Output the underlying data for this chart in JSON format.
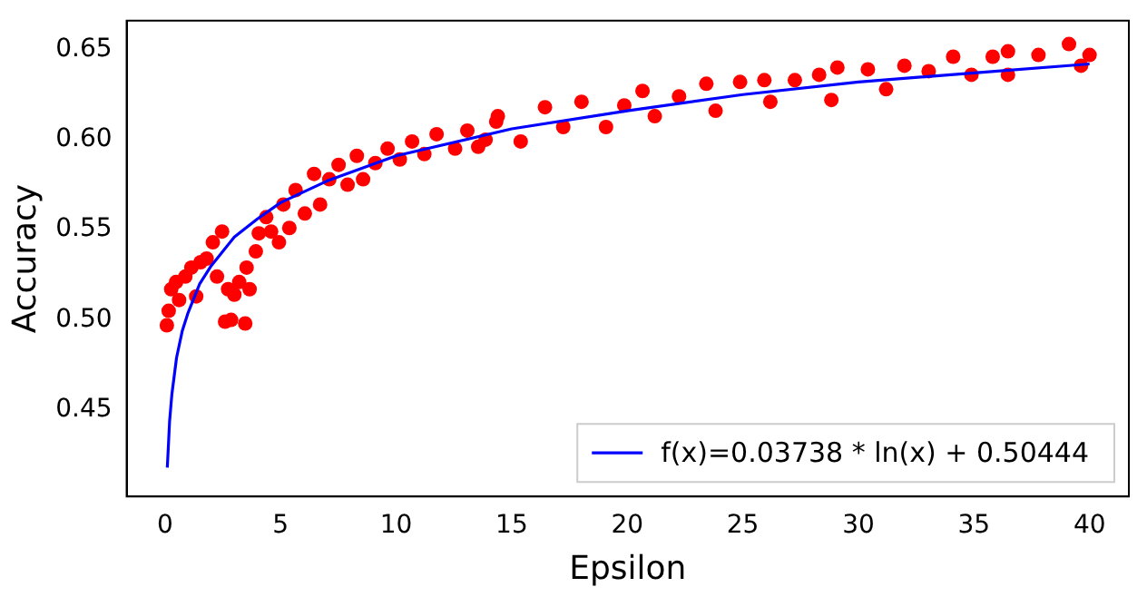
{
  "chart_data": {
    "type": "scatter",
    "xlabel": "Epsilon",
    "ylabel": "Accuracy",
    "xlim": [
      -1.66,
      41.7
    ],
    "xticks": [
      0,
      5,
      10,
      15,
      20,
      25,
      30,
      35,
      40
    ],
    "ylim": [
      0.402,
      0.666
    ],
    "yticks": [
      0.45,
      {
        "value": 0.5,
        "label": "0.50"
      },
      0.55,
      {
        "value": 0.6,
        "label": "0.60"
      },
      0.65
    ],
    "grid": false,
    "legend": "bottom right",
    "marker": "circle",
    "series": [
      {
        "color": "#ff0000",
        "x": [
          0.08,
          0.16,
          0.27,
          0.48,
          0.61,
          0.88,
          1.14,
          1.35,
          1.54,
          1.8,
          2.07,
          2.25,
          2.47,
          2.6,
          2.86,
          2.73,
          3.0,
          3.21,
          3.47,
          3.53,
          3.66,
          3.93,
          4.06,
          4.38,
          4.59,
          4.93,
          5.12,
          5.38,
          5.65,
          6.05,
          6.45,
          6.71,
          7.11,
          7.51,
          7.9,
          8.3,
          8.57,
          9.1,
          9.63,
          10.16,
          10.69,
          11.22,
          11.75,
          12.55,
          13.08,
          13.55,
          13.87,
          14.33,
          14.4,
          15.39,
          16.44,
          17.23,
          18.02,
          19.08,
          19.87,
          20.66,
          21.19,
          22.24,
          23.42,
          23.82,
          24.88,
          25.93,
          26.19,
          27.25,
          28.3,
          28.83,
          29.09,
          30.41,
          31.2,
          31.99,
          33.04,
          34.1,
          34.89,
          35.81,
          36.47,
          36.47,
          37.79,
          39.11,
          39.63,
          40.0
        ],
        "values": [
          0.497,
          0.505,
          0.517,
          0.521,
          0.511,
          0.524,
          0.529,
          0.513,
          0.532,
          0.534,
          0.543,
          0.524,
          0.549,
          0.499,
          0.5,
          0.517,
          0.514,
          0.521,
          0.498,
          0.529,
          0.517,
          0.538,
          0.548,
          0.557,
          0.549,
          0.543,
          0.564,
          0.551,
          0.572,
          0.559,
          0.581,
          0.564,
          0.578,
          0.586,
          0.575,
          0.591,
          0.578,
          0.587,
          0.595,
          0.589,
          0.599,
          0.592,
          0.603,
          0.595,
          0.605,
          0.596,
          0.6,
          0.61,
          0.613,
          0.599,
          0.618,
          0.607,
          0.621,
          0.607,
          0.619,
          0.627,
          0.613,
          0.624,
          0.631,
          0.616,
          0.632,
          0.633,
          0.621,
          0.633,
          0.636,
          0.622,
          0.64,
          0.639,
          0.628,
          0.641,
          0.638,
          0.646,
          0.636,
          0.646,
          0.649,
          0.636,
          0.647,
          0.653,
          0.641,
          0.647
        ]
      },
      {
        "type": "line",
        "name": "f(x)=0.03738 * ln(x) + 0.50444",
        "color": "#0000ff",
        "marker": "none",
        "line_style": "solid",
        "x": [
          0.1,
          0.2,
          0.3,
          0.5,
          0.75,
          1,
          1.5,
          2,
          3,
          4,
          5,
          7,
          10,
          15,
          20,
          25,
          30,
          35,
          40
        ],
        "values": [
          0.418,
          0.444,
          0.459,
          0.479,
          0.494,
          0.504,
          0.52,
          0.53,
          0.546,
          0.556,
          0.565,
          0.577,
          0.591,
          0.606,
          0.616,
          0.625,
          0.632,
          0.637,
          0.642
        ]
      }
    ]
  }
}
